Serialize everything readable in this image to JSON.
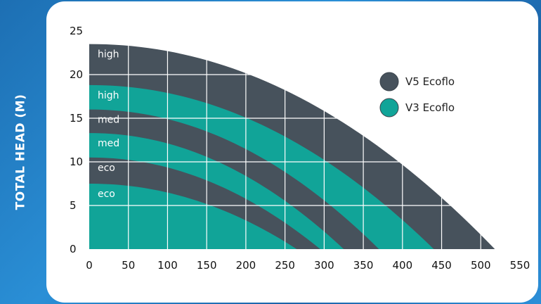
{
  "ylabel": "TOTAL HEAD (M)",
  "colors": {
    "dark": "#47525c",
    "teal": "#11a498",
    "grid": "#ffffff",
    "text": "#111111",
    "label": "#ffffff"
  },
  "chart_data": {
    "type": "area",
    "xlabel": "",
    "ylabel": "TOTAL HEAD (M)",
    "xlim": [
      0,
      550
    ],
    "ylim": [
      0,
      25
    ],
    "x_ticks": [
      0,
      50,
      100,
      150,
      200,
      250,
      300,
      350,
      400,
      450,
      500,
      550
    ],
    "y_ticks": [
      0,
      5,
      10,
      15,
      20,
      25
    ],
    "legend": "top-right",
    "series": [
      {
        "name": "V5 Ecoflo",
        "color": "#47525c",
        "setting": "high",
        "shutoff_head": 23.5,
        "max_flow": 518
      },
      {
        "name": "V3 Ecoflo",
        "color": "#11a498",
        "setting": "high",
        "shutoff_head": 18.8,
        "max_flow": 440
      },
      {
        "name": "V5 Ecoflo",
        "color": "#47525c",
        "setting": "med",
        "shutoff_head": 16.0,
        "max_flow": 370
      },
      {
        "name": "V3 Ecoflo",
        "color": "#11a498",
        "setting": "med",
        "shutoff_head": 13.3,
        "max_flow": 325
      },
      {
        "name": "V5 Ecoflo",
        "color": "#47525c",
        "setting": "eco",
        "shutoff_head": 10.5,
        "max_flow": 295
      },
      {
        "name": "V3 Ecoflo",
        "color": "#11a498",
        "setting": "eco",
        "shutoff_head": 7.5,
        "max_flow": 265
      }
    ],
    "legend_entries": [
      {
        "name": "V5 Ecoflo",
        "color": "#47525c"
      },
      {
        "name": "V3 Ecoflo",
        "color": "#11a498"
      }
    ]
  }
}
